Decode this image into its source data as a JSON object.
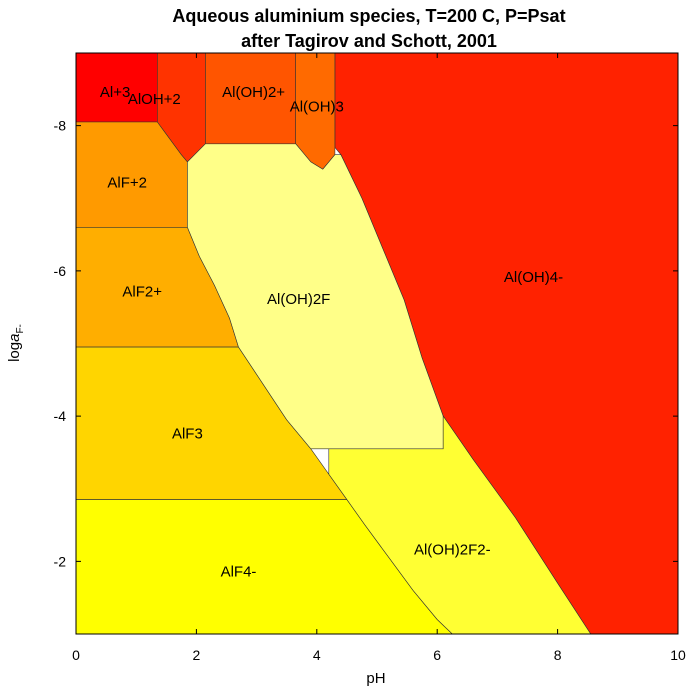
{
  "chart_data": {
    "type": "area",
    "title": "Aqueous aluminium species, T=200 C, P=Psat",
    "subtitle": "after Tagirov and Schott, 2001",
    "xlabel": "pH",
    "ylabel_main": "log",
    "ylabel_italic": "a",
    "ylabel_sub": "F-",
    "xlim": [
      0,
      10
    ],
    "ylim": [
      -9,
      -1
    ],
    "x_ticks": [
      {
        "value": 0,
        "label": "0"
      },
      {
        "value": 2,
        "label": "2"
      },
      {
        "value": 4,
        "label": "4"
      },
      {
        "value": 6,
        "label": "6"
      },
      {
        "value": 8,
        "label": "8"
      },
      {
        "value": 10,
        "label": "10"
      }
    ],
    "y_ticks": [
      {
        "value": -8,
        "label": "-8"
      },
      {
        "value": -6,
        "label": "-6"
      },
      {
        "value": -4,
        "label": "-4"
      },
      {
        "value": -2,
        "label": "-2"
      }
    ],
    "regions": [
      {
        "label": "Al(OH)4-",
        "color": "#ff2200",
        "label_pos": [
          7.6,
          -5.9
        ],
        "polygon": [
          [
            4.3,
            -9
          ],
          [
            10,
            -9
          ],
          [
            10,
            -1
          ],
          [
            8.55,
            -1
          ],
          [
            8.0,
            -1.7
          ],
          [
            7.3,
            -2.6
          ],
          [
            6.6,
            -3.4
          ],
          [
            6.1,
            -4.0
          ],
          [
            5.75,
            -4.8
          ],
          [
            5.45,
            -5.6
          ],
          [
            5.1,
            -6.3
          ],
          [
            4.75,
            -7.0
          ],
          [
            4.4,
            -7.6
          ],
          [
            4.3,
            -7.7
          ]
        ]
      },
      {
        "label": "Al+3",
        "color": "#ff0000",
        "label_pos": [
          0.65,
          -8.45
        ],
        "polygon": [
          [
            0,
            -9
          ],
          [
            1.35,
            -9
          ],
          [
            1.35,
            -8.05
          ],
          [
            0,
            -8.05
          ]
        ]
      },
      {
        "label": "AlOH+2",
        "color": "#ff3300",
        "label_pos": [
          1.3,
          -8.35
        ],
        "polygon": [
          [
            1.35,
            -9
          ],
          [
            2.15,
            -9
          ],
          [
            2.15,
            -7.75
          ],
          [
            1.85,
            -7.5
          ],
          [
            1.75,
            -7.6
          ],
          [
            1.35,
            -8.05
          ]
        ]
      },
      {
        "label": "Al(OH)2+",
        "color": "#ff5500",
        "label_pos": [
          2.95,
          -8.45
        ],
        "polygon": [
          [
            2.15,
            -9
          ],
          [
            3.65,
            -9
          ],
          [
            3.65,
            -7.75
          ],
          [
            2.15,
            -7.75
          ]
        ]
      },
      {
        "label": "Al(OH)3",
        "color": "#ff6a00",
        "label_pos": [
          4.0,
          -8.25
        ],
        "polygon": [
          [
            3.65,
            -9
          ],
          [
            4.3,
            -9
          ],
          [
            4.3,
            -7.6
          ],
          [
            4.1,
            -7.4
          ],
          [
            3.9,
            -7.5
          ],
          [
            3.65,
            -7.75
          ]
        ]
      },
      {
        "label": "AlF+2",
        "color": "#ff9a00",
        "label_pos": [
          0.85,
          -7.2
        ],
        "polygon": [
          [
            0,
            -8.05
          ],
          [
            1.35,
            -8.05
          ],
          [
            1.75,
            -7.6
          ],
          [
            1.85,
            -7.5
          ],
          [
            1.85,
            -6.6
          ],
          [
            0,
            -6.6
          ]
        ]
      },
      {
        "label": "AlF2+",
        "color": "#ffae00",
        "label_pos": [
          1.1,
          -5.7
        ],
        "polygon": [
          [
            0,
            -6.6
          ],
          [
            1.85,
            -6.6
          ],
          [
            2.05,
            -6.2
          ],
          [
            2.3,
            -5.8
          ],
          [
            2.55,
            -5.35
          ],
          [
            2.7,
            -4.95
          ],
          [
            0,
            -4.95
          ]
        ]
      },
      {
        "label": "AlF3",
        "color": "#ffd500",
        "label_pos": [
          1.85,
          -3.75
        ],
        "polygon": [
          [
            0,
            -4.95
          ],
          [
            2.7,
            -4.95
          ],
          [
            3.1,
            -4.45
          ],
          [
            3.5,
            -3.95
          ],
          [
            3.9,
            -3.55
          ],
          [
            4.2,
            -3.2
          ],
          [
            4.5,
            -2.85
          ],
          [
            0,
            -2.85
          ]
        ]
      },
      {
        "label": "AlF4-",
        "color": "#ffff00",
        "label_pos": [
          2.7,
          -1.85
        ],
        "polygon": [
          [
            0,
            -2.85
          ],
          [
            4.5,
            -2.85
          ],
          [
            4.8,
            -2.5
          ],
          [
            5.2,
            -2.05
          ],
          [
            5.6,
            -1.6
          ],
          [
            6.0,
            -1.2
          ],
          [
            6.25,
            -1
          ],
          [
            0,
            -1
          ]
        ]
      },
      {
        "label": "Al(OH)2F",
        "color": "#ffff88",
        "label_pos": [
          3.7,
          -5.6
        ],
        "polygon": [
          [
            2.15,
            -7.75
          ],
          [
            3.65,
            -7.75
          ],
          [
            3.9,
            -7.5
          ],
          [
            4.1,
            -7.4
          ],
          [
            4.3,
            -7.6
          ],
          [
            4.4,
            -7.6
          ],
          [
            4.75,
            -7.0
          ],
          [
            5.1,
            -6.3
          ],
          [
            5.45,
            -5.6
          ],
          [
            5.75,
            -4.8
          ],
          [
            6.1,
            -4.0
          ],
          [
            6.1,
            -3.55
          ],
          [
            4.2,
            -3.55
          ],
          [
            3.9,
            -3.55
          ],
          [
            3.5,
            -3.95
          ],
          [
            3.1,
            -4.45
          ],
          [
            2.7,
            -4.95
          ],
          [
            2.55,
            -5.35
          ],
          [
            2.3,
            -5.8
          ],
          [
            2.05,
            -6.2
          ],
          [
            1.85,
            -6.6
          ],
          [
            1.85,
            -7.5
          ]
        ]
      },
      {
        "label": "Al(OH)2F2-",
        "color": "#ffff33",
        "label_pos": [
          6.25,
          -2.15
        ],
        "polygon": [
          [
            4.2,
            -3.55
          ],
          [
            6.1,
            -3.55
          ],
          [
            6.1,
            -4.0
          ],
          [
            6.6,
            -3.4
          ],
          [
            7.3,
            -2.6
          ],
          [
            8.0,
            -1.7
          ],
          [
            8.55,
            -1
          ],
          [
            6.25,
            -1
          ],
          [
            6.0,
            -1.2
          ],
          [
            5.6,
            -1.6
          ],
          [
            5.2,
            -2.05
          ],
          [
            4.8,
            -2.5
          ],
          [
            4.5,
            -2.85
          ],
          [
            4.2,
            -3.2
          ]
        ]
      }
    ],
    "grid": false,
    "legend": "none"
  }
}
